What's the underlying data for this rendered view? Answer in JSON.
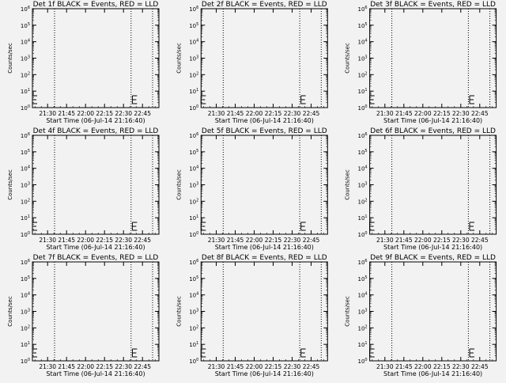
{
  "chart_data": {
    "type": "line",
    "shared": {
      "xlabel": "Start Time (06-Jul-14 21:16:40)",
      "ylabel": "Counts/sec",
      "xticks": [
        "21:30",
        "21:45",
        "22:00",
        "22:15",
        "22:30",
        "22:45"
      ],
      "xlim_minutes_after_2100": [
        18,
        118
      ],
      "yscale": "log",
      "ylim": [
        1,
        1000000
      ],
      "yticks": [
        "10^0",
        "10^1",
        "10^2",
        "10^3",
        "10^4",
        "10^5",
        "10^6"
      ],
      "dotted_lines": [
        "21:35:30",
        "22:36:00",
        "22:53:00"
      ],
      "events_points": [
        {
          "time": "21:18",
          "value": 3
        },
        {
          "time": "22:37",
          "value": 3
        }
      ],
      "series_colors": {
        "Events": "#000000",
        "LLD": "#ff0000"
      }
    },
    "panels": [
      {
        "title": "Det 1f BLACK = Events, RED = LLD"
      },
      {
        "title": "Det 2f BLACK = Events, RED = LLD"
      },
      {
        "title": "Det 3f BLACK = Events, RED = LLD"
      },
      {
        "title": "Det 4f BLACK = Events, RED = LLD"
      },
      {
        "title": "Det 5f BLACK = Events, RED = LLD"
      },
      {
        "title": "Det 6f BLACK = Events, RED = LLD"
      },
      {
        "title": "Det 7f BLACK = Events, RED = LLD"
      },
      {
        "title": "Det 8f BLACK = Events, RED = LLD"
      },
      {
        "title": "Det 9f BLACK = Events, RED = LLD"
      }
    ]
  }
}
